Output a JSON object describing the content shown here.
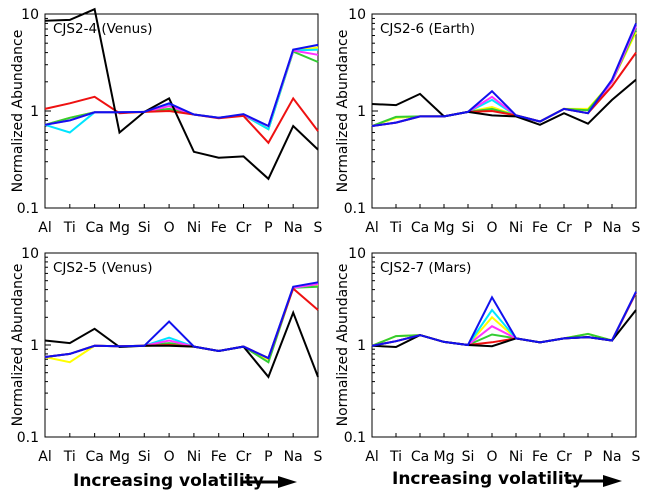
{
  "figure": {
    "footer_left": "Increasing volatility",
    "footer_right": "Increasing volatility",
    "arrow_icon": "right-arrow-icon"
  },
  "chart_data": [
    {
      "type": "line",
      "title": "CJS2-4 (Venus)",
      "xlabel": "",
      "ylabel": "Normalized Abundance",
      "yscale": "log",
      "ylim": [
        0.1,
        10
      ],
      "yticks": [
        0.1,
        1,
        10
      ],
      "ytick_labels": [
        "0.1",
        "1",
        "10"
      ],
      "categories": [
        "Al",
        "Ti",
        "Ca",
        "Mg",
        "Si",
        "O",
        "Ni",
        "Fe",
        "Cr",
        "P",
        "Na",
        "S"
      ],
      "series": [
        {
          "name": "yellow",
          "color": "#ffff00",
          "values": [
            0.72,
            0.85,
            0.97,
            0.97,
            0.98,
            1.05,
            0.92,
            0.85,
            0.91,
            0.65,
            4.2,
            4.5
          ]
        },
        {
          "name": "green",
          "color": "#33cc33",
          "values": [
            0.72,
            0.85,
            0.97,
            0.97,
            0.98,
            1.05,
            0.92,
            0.85,
            0.91,
            0.65,
            4.1,
            3.2
          ]
        },
        {
          "name": "cyan",
          "color": "#00e5ff",
          "values": [
            0.72,
            0.6,
            0.97,
            0.97,
            0.98,
            1.15,
            0.92,
            0.85,
            0.91,
            0.65,
            4.2,
            4.3
          ]
        },
        {
          "name": "magenta",
          "color": "#ff33ff",
          "values": [
            0.72,
            0.8,
            0.97,
            0.97,
            0.98,
            1.12,
            0.92,
            0.85,
            0.91,
            0.7,
            4.2,
            3.8
          ]
        },
        {
          "name": "red",
          "color": "#ee1111",
          "values": [
            1.05,
            1.2,
            1.4,
            0.95,
            0.98,
            1.0,
            0.92,
            0.84,
            0.89,
            0.47,
            1.35,
            0.62
          ]
        },
        {
          "name": "black",
          "color": "#000000",
          "values": [
            8.5,
            8.7,
            11.2,
            0.6,
            0.98,
            1.35,
            0.38,
            0.33,
            0.34,
            0.2,
            0.7,
            0.4
          ]
        },
        {
          "name": "blue",
          "color": "#1111ee",
          "values": [
            0.72,
            0.8,
            0.97,
            0.97,
            0.98,
            1.2,
            0.92,
            0.85,
            0.93,
            0.7,
            4.3,
            4.8
          ]
        }
      ]
    },
    {
      "type": "line",
      "title": "CJS2-6 (Earth)",
      "xlabel": "",
      "ylabel": "Normalized Abundance",
      "yscale": "log",
      "ylim": [
        0.1,
        10
      ],
      "yticks": [
        0.1,
        1,
        10
      ],
      "ytick_labels": [
        "0.1",
        "1",
        "10"
      ],
      "categories": [
        "Al",
        "Ti",
        "Ca",
        "Mg",
        "Si",
        "O",
        "Ni",
        "Fe",
        "Cr",
        "P",
        "Na",
        "S"
      ],
      "series": [
        {
          "name": "yellow",
          "color": "#ffff00",
          "values": [
            0.7,
            0.85,
            0.88,
            0.88,
            0.98,
            1.1,
            0.9,
            0.78,
            1.05,
            1.05,
            2.0,
            6.5
          ]
        },
        {
          "name": "green",
          "color": "#33cc33",
          "values": [
            0.7,
            0.87,
            0.88,
            0.88,
            0.98,
            1.05,
            0.9,
            0.78,
            1.05,
            1.02,
            2.0,
            7.0
          ]
        },
        {
          "name": "cyan",
          "color": "#00e5ff",
          "values": [
            0.7,
            0.76,
            0.88,
            0.88,
            0.98,
            1.3,
            0.9,
            0.78,
            1.05,
            0.95,
            2.0,
            7.5
          ]
        },
        {
          "name": "magenta",
          "color": "#ff33ff",
          "values": [
            0.7,
            0.76,
            0.88,
            0.88,
            0.98,
            1.4,
            0.9,
            0.78,
            1.05,
            0.95,
            2.0,
            7.5
          ]
        },
        {
          "name": "red",
          "color": "#ee1111",
          "values": [
            0.7,
            0.76,
            0.88,
            0.88,
            0.98,
            1.0,
            0.9,
            0.78,
            1.05,
            0.95,
            1.8,
            4.0
          ]
        },
        {
          "name": "black",
          "color": "#000000",
          "values": [
            1.18,
            1.15,
            1.5,
            0.88,
            0.98,
            0.9,
            0.88,
            0.72,
            0.95,
            0.74,
            1.3,
            2.1
          ]
        },
        {
          "name": "blue",
          "color": "#1111ee",
          "values": [
            0.7,
            0.76,
            0.88,
            0.88,
            0.98,
            1.6,
            0.9,
            0.78,
            1.05,
            0.95,
            2.1,
            8.0
          ]
        }
      ]
    },
    {
      "type": "line",
      "title": "CJS2-5 (Venus)",
      "xlabel": "Increasing volatility",
      "ylabel": "Normalized Abundance",
      "yscale": "log",
      "ylim": [
        0.1,
        10
      ],
      "yticks": [
        0.1,
        1,
        10
      ],
      "ytick_labels": [
        "0.1",
        "1",
        "10"
      ],
      "categories": [
        "Al",
        "Ti",
        "Ca",
        "Mg",
        "Si",
        "O",
        "Ni",
        "Fe",
        "Cr",
        "P",
        "Na",
        "S"
      ],
      "series": [
        {
          "name": "yellow",
          "color": "#ffff00",
          "values": [
            0.74,
            0.65,
            0.98,
            0.97,
            0.98,
            1.0,
            0.96,
            0.86,
            0.96,
            0.7,
            4.2,
            4.5
          ]
        },
        {
          "name": "green",
          "color": "#33cc33",
          "values": [
            0.74,
            0.8,
            0.98,
            0.97,
            0.98,
            1.05,
            0.96,
            0.86,
            0.96,
            0.65,
            4.2,
            4.3
          ]
        },
        {
          "name": "cyan",
          "color": "#00e5ff",
          "values": [
            0.74,
            0.8,
            0.98,
            0.97,
            0.98,
            1.2,
            0.96,
            0.86,
            0.96,
            0.72,
            4.2,
            4.6
          ]
        },
        {
          "name": "magenta",
          "color": "#ff33ff",
          "values": [
            0.74,
            0.8,
            0.98,
            0.97,
            0.98,
            1.12,
            0.96,
            0.86,
            0.96,
            0.72,
            4.2,
            4.6
          ]
        },
        {
          "name": "red",
          "color": "#ee1111",
          "values": [
            0.74,
            0.8,
            0.98,
            0.97,
            0.98,
            1.0,
            0.96,
            0.86,
            0.96,
            0.72,
            4.1,
            2.4
          ]
        },
        {
          "name": "black",
          "color": "#000000",
          "values": [
            1.12,
            1.05,
            1.5,
            0.95,
            0.98,
            0.98,
            0.96,
            0.86,
            0.96,
            0.45,
            2.25,
            0.45
          ]
        },
        {
          "name": "blue",
          "color": "#1111ee",
          "values": [
            0.74,
            0.8,
            0.98,
            0.97,
            0.98,
            1.8,
            0.96,
            0.86,
            0.96,
            0.72,
            4.3,
            4.8
          ]
        }
      ]
    },
    {
      "type": "line",
      "title": "CJS2-7 (Mars)",
      "xlabel": "Increasing volatility",
      "ylabel": "Normalized Abundance",
      "yscale": "log",
      "ylim": [
        0.1,
        10
      ],
      "yticks": [
        0.1,
        1,
        10
      ],
      "ytick_labels": [
        "0.1",
        "1",
        "10"
      ],
      "categories": [
        "Al",
        "Ti",
        "Ca",
        "Mg",
        "Si",
        "O",
        "Ni",
        "Fe",
        "Cr",
        "P",
        "Na",
        "S"
      ],
      "series": [
        {
          "name": "yellow",
          "color": "#ffff00",
          "values": [
            0.98,
            1.25,
            1.28,
            1.08,
            1.0,
            2.0,
            1.18,
            1.07,
            1.18,
            1.32,
            1.12,
            3.7
          ]
        },
        {
          "name": "green",
          "color": "#33cc33",
          "values": [
            0.98,
            1.25,
            1.28,
            1.08,
            1.0,
            1.3,
            1.18,
            1.07,
            1.18,
            1.32,
            1.12,
            3.7
          ]
        },
        {
          "name": "cyan",
          "color": "#00e5ff",
          "values": [
            0.98,
            1.1,
            1.28,
            1.08,
            1.0,
            2.4,
            1.18,
            1.07,
            1.18,
            1.22,
            1.12,
            3.7
          ]
        },
        {
          "name": "magenta",
          "color": "#ff33ff",
          "values": [
            0.98,
            1.1,
            1.28,
            1.08,
            1.0,
            1.6,
            1.18,
            1.07,
            1.18,
            1.22,
            1.12,
            3.7
          ]
        },
        {
          "name": "red",
          "color": "#ee1111",
          "values": [
            0.98,
            1.1,
            1.28,
            1.08,
            1.0,
            1.07,
            1.18,
            1.07,
            1.18,
            1.22,
            1.12,
            3.7
          ]
        },
        {
          "name": "black",
          "color": "#000000",
          "values": [
            0.98,
            0.95,
            1.28,
            1.08,
            1.0,
            0.97,
            1.18,
            1.07,
            1.18,
            1.22,
            1.12,
            2.4
          ]
        },
        {
          "name": "blue",
          "color": "#1111ee",
          "values": [
            0.98,
            1.1,
            1.28,
            1.08,
            1.0,
            3.3,
            1.18,
            1.07,
            1.18,
            1.22,
            1.12,
            3.8
          ]
        }
      ]
    }
  ]
}
